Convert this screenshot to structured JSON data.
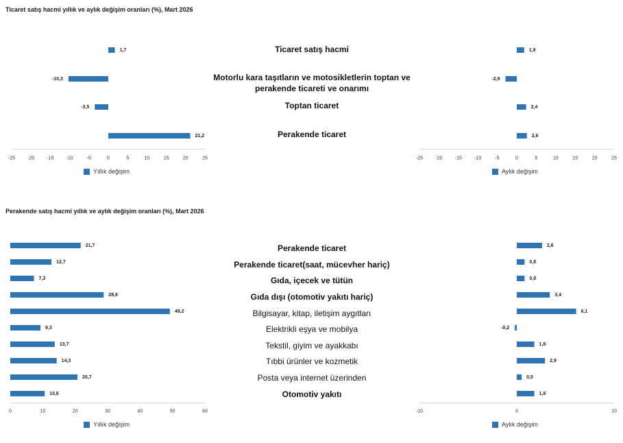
{
  "colors": {
    "bar": "#2f75b5",
    "axis": "#d9d9d9"
  },
  "chart_data": [
    {
      "type": "bar",
      "orientation": "horizontal",
      "title": "Ticaret satış hacmi yıllık ve aylık değişim oranları (%), Mart 2026",
      "categories": [
        "Ticaret satış hacmi",
        "Motorlu kara taşıtların ve motosikletlerin toptan ve perakende ticareti ve onarımı",
        "Toptan ticaret",
        "Perakende ticaret"
      ],
      "series": [
        {
          "name": "Yıllık değişim",
          "values": [
            1.7,
            -10.3,
            -3.5,
            21.2
          ],
          "value_labels": [
            "1,7",
            "-10,3",
            "-3,5",
            "21,2"
          ],
          "xlim": [
            -25,
            25
          ],
          "ticks": [
            -25,
            -20,
            -15,
            -10,
            -5,
            0,
            5,
            10,
            15,
            20,
            25
          ]
        },
        {
          "name": "Aylık değişim",
          "values": [
            1.9,
            -2.9,
            2.4,
            2.6
          ],
          "value_labels": [
            "1,9",
            "-2,9",
            "2,4",
            "2,6"
          ],
          "xlim": [
            -25,
            25
          ],
          "ticks": [
            -25,
            -20,
            -15,
            -10,
            -5,
            0,
            5,
            10,
            15,
            20,
            25
          ]
        }
      ],
      "grid": false,
      "legend": "bottom"
    },
    {
      "type": "bar",
      "orientation": "horizontal",
      "title": "Perakende satış hacmi yıllık ve aylık değişim oranları (%), Mart 2026",
      "categories": [
        "Perakende ticaret",
        "Perakende ticaret(saat, mücevher hariç)",
        "Gıda, içecek ve tütün",
        "Gıda dışı (otomotiv yakıtı hariç)",
        "Bilgisayar, kitap, iletişim aygıtları",
        "Elektrikli eşya ve mobilya",
        "Tekstil, giyim ve ayakkabı",
        "Tıbbi ürünler ve kozmetik",
        "Posta veya internet üzerinden",
        "Otomotiv yakıtı"
      ],
      "series": [
        {
          "name": "Yıllık değişim",
          "values": [
            21.7,
            12.7,
            7.3,
            28.8,
            49.2,
            9.3,
            13.7,
            14.3,
            20.7,
            10.6
          ],
          "value_labels": [
            "21,7",
            "12,7",
            "7,3",
            "28,8",
            "49,2",
            "9,3",
            "13,7",
            "14,3",
            "20,7",
            "10,6"
          ],
          "xlim": [
            0,
            60
          ],
          "ticks": [
            0,
            10,
            20,
            30,
            40,
            50,
            60
          ]
        },
        {
          "name": "Aylık değişim",
          "values": [
            2.6,
            0.8,
            0.8,
            3.4,
            6.1,
            -0.2,
            1.8,
            2.9,
            0.5,
            1.8
          ],
          "value_labels": [
            "2,6",
            "0,8",
            "0,8",
            "3,4",
            "6,1",
            "-0,2",
            "1,8",
            "2,9",
            "0,5",
            "1,8"
          ],
          "xlim": [
            -10,
            10
          ],
          "ticks": [
            -10,
            0,
            10
          ]
        }
      ],
      "grid": false,
      "legend": "bottom"
    }
  ]
}
